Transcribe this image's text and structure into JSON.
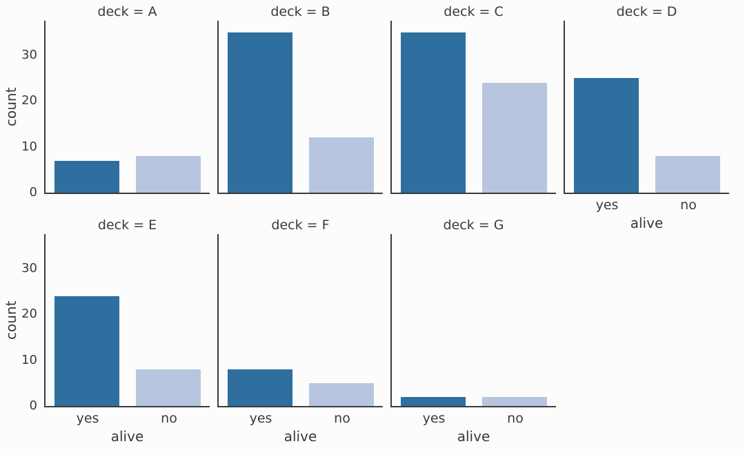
{
  "figure": {
    "background_color": "#fcfcfd",
    "text_color": "#3a3a3a",
    "axis_color": "#3b3b3b"
  },
  "chart_data": {
    "type": "bar",
    "kind": "faceted-countplot",
    "categories": [
      "yes",
      "no"
    ],
    "xlabel": "alive",
    "ylabel": "count",
    "yticks": [
      0,
      10,
      20,
      30
    ],
    "ylim": [
      0,
      37.5
    ],
    "grid": false,
    "legend": "none",
    "col_wrap": 4,
    "bar_colors": {
      "yes": "#2f6f9f",
      "no": "#b8c5df"
    },
    "facets": [
      {
        "deck": "A",
        "title": "deck = A",
        "values": [
          7,
          8
        ],
        "show_y": true,
        "show_x": false
      },
      {
        "deck": "B",
        "title": "deck = B",
        "values": [
          35,
          12
        ],
        "show_y": false,
        "show_x": false
      },
      {
        "deck": "C",
        "title": "deck = C",
        "values": [
          35,
          24
        ],
        "show_y": false,
        "show_x": false
      },
      {
        "deck": "D",
        "title": "deck = D",
        "values": [
          25,
          8
        ],
        "show_y": false,
        "show_x": true
      },
      {
        "deck": "E",
        "title": "deck = E",
        "values": [
          24,
          8
        ],
        "show_y": true,
        "show_x": true
      },
      {
        "deck": "F",
        "title": "deck = F",
        "values": [
          8,
          5
        ],
        "show_y": false,
        "show_x": true
      },
      {
        "deck": "G",
        "title": "deck = G",
        "values": [
          2,
          2
        ],
        "show_y": false,
        "show_x": true
      }
    ]
  }
}
